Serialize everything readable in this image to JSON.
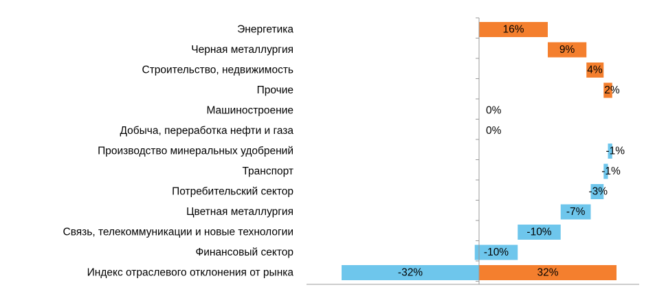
{
  "colors": {
    "positive": "#F47F2E",
    "negative": "#6EC6EC",
    "axis": "#9A9A9A"
  },
  "chart_data": {
    "type": "bar",
    "orientation": "horizontal",
    "subtype": "waterfall",
    "title": "",
    "xlabel": "",
    "ylabel": "",
    "grid": false,
    "legend": "none",
    "categories": [
      "Энергетика",
      "Черная металлургия",
      "Строительство, недвижимость",
      "Прочие",
      "Машиностроение",
      "Добыча, переработка нефти и газа",
      "Производство минеральных удобрений",
      "Транспорт",
      "Потребительский сектор",
      "Цветная металлургия",
      "Связь, телекоммуникации и новые технологии",
      "Финансовый сектор",
      "Индекс отраслевого отклонения от рынка"
    ],
    "values": [
      16,
      9,
      4,
      2,
      0,
      0,
      -1,
      -1,
      -3,
      -7,
      -10,
      -10,
      null
    ],
    "labels": [
      "16%",
      "9%",
      "4%",
      "2%",
      "0%",
      "0%",
      "-1%",
      "-1%",
      "-3%",
      "-7%",
      "-10%",
      "-10%",
      ""
    ],
    "total": {
      "negative": -32,
      "positive": 32,
      "negative_label": "-32%",
      "positive_label": "32%"
    },
    "xlim": [
      -32,
      32
    ]
  }
}
